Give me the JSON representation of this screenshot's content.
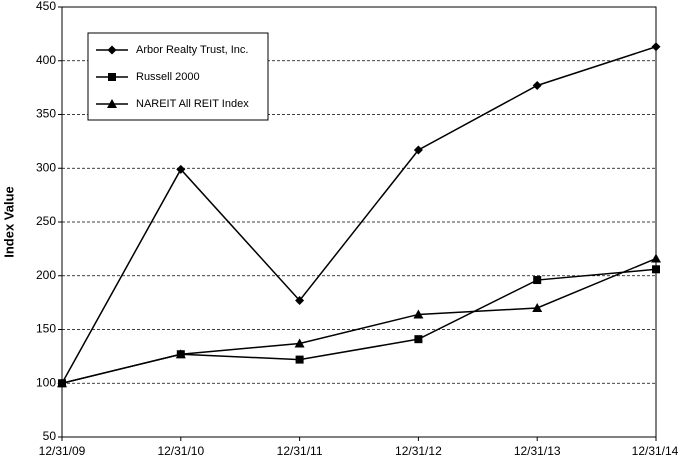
{
  "chart_data": {
    "type": "line",
    "y_label": "Index Value",
    "categories": [
      "12/31/09",
      "12/31/10",
      "12/31/11",
      "12/31/12",
      "12/31/13",
      "12/31/14"
    ],
    "series": [
      {
        "name": "Arbor Realty Trust, Inc.",
        "color": "#000000",
        "marker": "diamond",
        "values": [
          100,
          299,
          177,
          317,
          377,
          413
        ]
      },
      {
        "name": "Russell 2000",
        "color": "#000000",
        "marker": "square",
        "values": [
          100,
          127,
          122,
          141,
          196,
          206
        ]
      },
      {
        "name": "NAREIT All REIT Index",
        "color": "#000000",
        "marker": "triangle",
        "values": [
          100,
          127,
          137,
          164,
          170,
          216
        ]
      }
    ],
    "ylim": [
      50,
      450
    ],
    "yticks": [
      50,
      100,
      150,
      200,
      250,
      300,
      350,
      400,
      450
    ],
    "grid": true,
    "legend": "upper left"
  }
}
